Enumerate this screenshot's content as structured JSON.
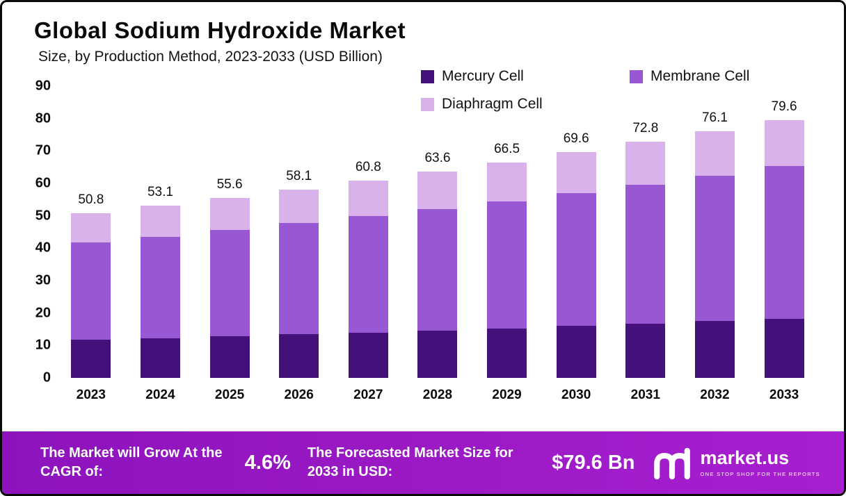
{
  "header": {
    "title": "Global Sodium Hydroxide Market",
    "subtitle": "Size, by Production Method, 2023-2033 (USD Billion)"
  },
  "chart_data": {
    "type": "bar",
    "stacked": true,
    "title": "Global Sodium Hydroxide Market Size, by Production Method, 2023-2033 (USD Billion)",
    "xlabel": "",
    "ylabel": "",
    "ylim": [
      0,
      90
    ],
    "yticks": [
      0,
      10,
      20,
      30,
      40,
      50,
      60,
      70,
      80,
      90
    ],
    "grid": false,
    "legend_position": "top-right",
    "categories": [
      "2023",
      "2024",
      "2025",
      "2026",
      "2027",
      "2028",
      "2029",
      "2030",
      "2031",
      "2032",
      "2033"
    ],
    "series": [
      {
        "name": "Mercury Cell",
        "color": "#44107A",
        "values": [
          11.7,
          12.2,
          12.8,
          13.4,
          14.0,
          14.6,
          15.3,
          16.0,
          16.7,
          17.5,
          18.3
        ]
      },
      {
        "name": "Membrane Cell",
        "color": "#9957D3",
        "values": [
          30.0,
          31.3,
          32.8,
          34.3,
          35.9,
          37.5,
          39.2,
          41.0,
          42.9,
          44.9,
          47.0
        ]
      },
      {
        "name": "Diaphragm Cell",
        "color": "#D9B2EC",
        "values": [
          9.1,
          9.6,
          10.0,
          10.4,
          10.9,
          11.5,
          12.0,
          12.6,
          13.2,
          13.7,
          14.3
        ]
      }
    ],
    "totals": [
      50.8,
      53.1,
      55.6,
      58.1,
      60.8,
      63.6,
      66.5,
      69.6,
      72.8,
      76.1,
      79.6
    ]
  },
  "footer": {
    "cagr_label": "The Market will Grow At the CAGR of:",
    "cagr_value": "4.6%",
    "forecast_label": "The Forecasted Market Size for 2033 in USD:",
    "forecast_value": "$79.6 Bn",
    "brand": "market.us",
    "brand_tagline": "ONE STOP SHOP FOR THE REPORTS"
  }
}
